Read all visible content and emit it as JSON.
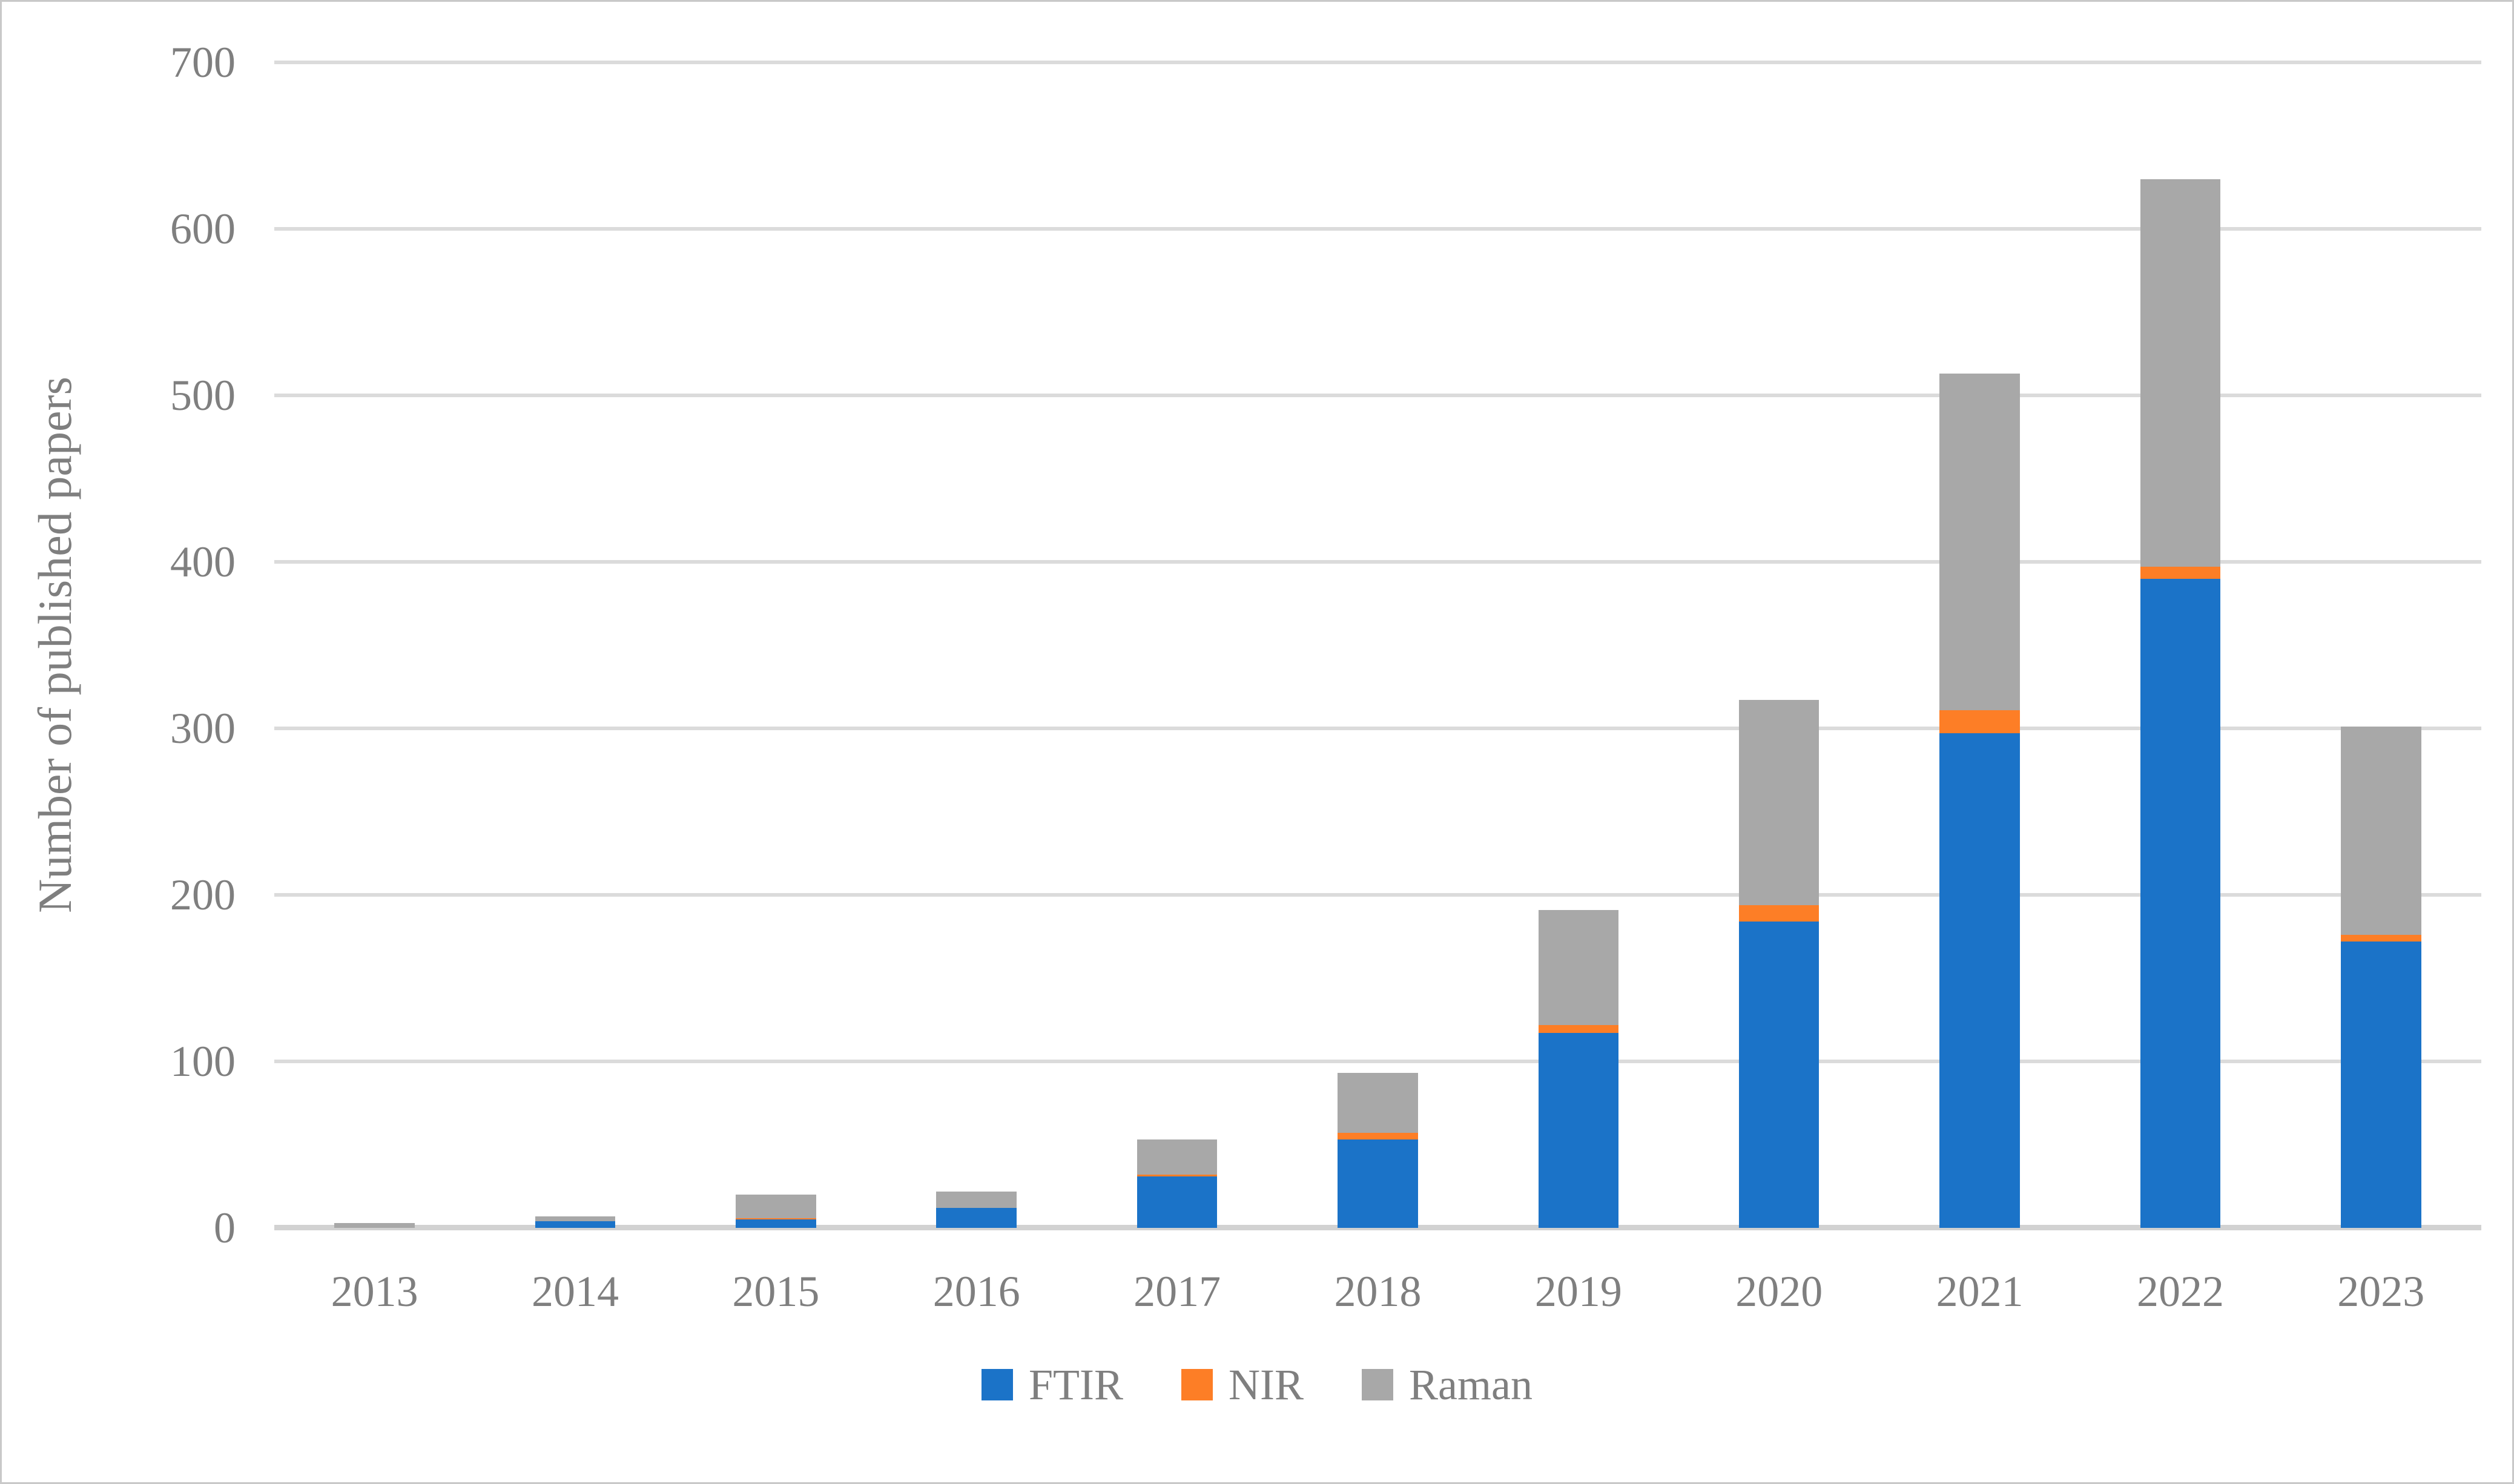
{
  "colors": {
    "ftir_blue": "#1b73c8",
    "nir_orange": "#fd7e26",
    "raman_gray": "#a8a8a8",
    "gridline": "#dbdbdb",
    "axis_line": "#d2d2d2",
    "text_gray": "#7f7f7f",
    "figure_border": "#c9c9c9",
    "background": "#ffffff"
  },
  "chart_data": {
    "type": "bar",
    "stacked": true,
    "title": "",
    "categories": [
      "2013",
      "2014",
      "2015",
      "2016",
      "2017",
      "2018",
      "2019",
      "2020",
      "2021",
      "2022",
      "2023"
    ],
    "series": [
      {
        "name": "FTIR",
        "color": "#1b73c8",
        "values": [
          0,
          4,
          5,
          12,
          31,
          53,
          117,
          184,
          297,
          390,
          172
        ]
      },
      {
        "name": "NIR",
        "color": "#fd7e26",
        "values": [
          0,
          0,
          1,
          0,
          1,
          4,
          5,
          10,
          14,
          7,
          4
        ]
      },
      {
        "name": "Raman",
        "color": "#a8a8a8",
        "values": [
          3,
          3,
          14,
          10,
          21,
          36,
          69,
          123,
          202,
          233,
          125
        ]
      }
    ],
    "stack_totals": [
      3,
      7,
      20,
      22,
      53,
      93,
      191,
      317,
      513,
      630,
      301
    ],
    "xlabel": "",
    "ylabel": "Number of published papers",
    "ylim": [
      0,
      700
    ],
    "ytick_step": 100,
    "yticks": [
      "0",
      "100",
      "200",
      "300",
      "400",
      "500",
      "600",
      "700"
    ],
    "grid": true,
    "legend": [
      "FTIR",
      "NIR",
      "Raman"
    ],
    "legend_position": "bottom"
  }
}
